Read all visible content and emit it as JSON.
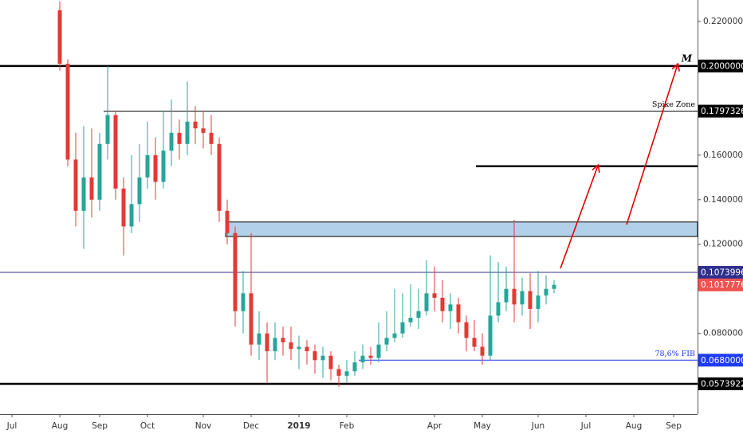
{
  "chart_data": {
    "type": "candlestick",
    "categories": [
      null,
      "Jul",
      null,
      null,
      null,
      null,
      null,
      "Aug",
      null,
      null,
      null,
      null,
      "Sep",
      null,
      null,
      null,
      null,
      null,
      "Oct",
      null,
      null,
      null,
      null,
      null,
      null,
      "Nov",
      null,
      null,
      null,
      null,
      null,
      "Dec",
      null,
      null,
      null,
      null,
      null,
      "2019",
      null,
      null,
      null,
      null,
      null,
      "Feb",
      null,
      null,
      null,
      null,
      null,
      null,
      null,
      null,
      null,
      null,
      "Apr",
      null,
      null,
      null,
      null,
      null,
      "May",
      null,
      null,
      null,
      null,
      null,
      null,
      "Jun",
      null,
      null,
      null,
      null,
      null,
      "Jul",
      null,
      null,
      null,
      null,
      null,
      "Aug",
      null,
      null,
      null,
      null,
      "Sep",
      null,
      null,
      null
    ],
    "open": [
      null,
      null,
      null,
      null,
      null,
      null,
      null,
      0.225,
      0.201,
      0.158,
      0.135,
      0.15,
      0.14,
      0.165,
      0.178,
      0.145,
      0.128,
      0.138,
      0.15,
      0.16,
      0.148,
      0.162,
      0.17,
      0.165,
      0.175,
      0.172,
      0.17,
      0.165,
      0.135,
      0.125,
      0.09,
      0.098,
      0.075,
      0.08,
      0.072,
      0.078,
      0.076,
      0.073,
      0.074,
      0.072,
      0.068,
      0.07,
      0.064,
      0.061,
      0.063,
      0.067,
      0.07,
      0.069,
      0.075,
      0.078,
      0.08,
      0.085,
      0.087,
      0.09,
      0.098,
      0.096,
      0.09,
      0.093,
      0.085,
      0.078,
      0.074,
      0.07,
      0.088,
      0.094,
      0.1,
      0.093,
      0.099,
      0.091,
      0.097,
      0.1,
      null,
      null,
      null,
      null,
      null,
      null,
      null,
      null,
      null,
      null,
      null,
      null,
      null,
      null,
      null,
      null,
      null,
      null
    ],
    "high": [
      null,
      null,
      null,
      null,
      null,
      null,
      null,
      0.229,
      0.203,
      0.17,
      0.173,
      0.172,
      0.17,
      0.2,
      0.18,
      0.15,
      0.16,
      0.165,
      0.175,
      0.168,
      0.18,
      0.185,
      0.176,
      0.193,
      0.182,
      0.18,
      0.178,
      0.168,
      0.14,
      0.128,
      0.108,
      0.125,
      0.09,
      0.085,
      0.085,
      0.083,
      0.083,
      0.079,
      0.077,
      0.075,
      0.074,
      0.072,
      0.066,
      0.068,
      0.072,
      0.075,
      0.074,
      0.085,
      0.09,
      0.1,
      0.098,
      0.102,
      0.1,
      0.113,
      0.11,
      0.104,
      0.098,
      0.096,
      0.088,
      0.086,
      0.08,
      0.115,
      0.112,
      0.11,
      0.131,
      0.105,
      0.107,
      0.108,
      0.106,
      0.104,
      null,
      null,
      null,
      null,
      null,
      null,
      null,
      null,
      null,
      null,
      null,
      null,
      null,
      null,
      null,
      null,
      null,
      null
    ],
    "low": [
      null,
      null,
      null,
      null,
      null,
      null,
      null,
      0.198,
      0.155,
      0.128,
      0.118,
      0.132,
      0.135,
      0.158,
      0.14,
      0.115,
      0.125,
      0.13,
      0.145,
      0.14,
      0.145,
      0.155,
      0.158,
      0.16,
      0.165,
      0.163,
      0.16,
      0.13,
      0.12,
      0.083,
      0.08,
      0.07,
      0.068,
      0.058,
      0.068,
      0.07,
      0.068,
      0.064,
      0.066,
      0.062,
      0.06,
      0.059,
      0.056,
      0.058,
      0.061,
      0.064,
      0.066,
      0.067,
      0.072,
      0.076,
      0.078,
      0.083,
      0.082,
      0.088,
      0.09,
      0.085,
      0.082,
      0.08,
      0.072,
      0.072,
      0.066,
      0.068,
      0.085,
      0.09,
      0.085,
      0.088,
      0.082,
      0.085,
      0.093,
      0.098,
      null,
      null,
      null,
      null,
      null,
      null,
      null,
      null,
      null,
      null,
      null,
      null,
      null,
      null,
      null,
      null,
      null,
      null
    ],
    "close": [
      null,
      null,
      null,
      null,
      null,
      null,
      null,
      0.201,
      0.158,
      0.135,
      0.15,
      0.14,
      0.165,
      0.178,
      0.145,
      0.128,
      0.138,
      0.15,
      0.16,
      0.148,
      0.162,
      0.17,
      0.165,
      0.175,
      0.172,
      0.17,
      0.165,
      0.135,
      0.125,
      0.09,
      0.098,
      0.075,
      0.08,
      0.072,
      0.078,
      0.076,
      0.073,
      0.074,
      0.072,
      0.068,
      0.07,
      0.064,
      0.061,
      0.063,
      0.067,
      0.07,
      0.069,
      0.075,
      0.078,
      0.08,
      0.085,
      0.087,
      0.09,
      0.098,
      0.096,
      0.09,
      0.093,
      0.085,
      0.078,
      0.074,
      0.07,
      0.088,
      0.094,
      0.1,
      0.093,
      0.099,
      0.091,
      0.097,
      0.1,
      0.10177765,
      null,
      null,
      null,
      null,
      null,
      null,
      null,
      null,
      null,
      null,
      null,
      null,
      null,
      null,
      null,
      null,
      null,
      null
    ],
    "up_color": "#26a69a",
    "down_color": "#e53935",
    "ylim": [
      0.0438,
      0.2296
    ],
    "yticks": [
      {
        "value": 0.22,
        "label": "0.22000000"
      },
      {
        "value": 0.16,
        "label": "0.16000000"
      },
      {
        "value": 0.14,
        "label": "0.14000000"
      },
      {
        "value": 0.12,
        "label": "0.12000000"
      },
      {
        "value": 0.08,
        "label": "0.08000000"
      }
    ],
    "levels": [
      {
        "value": 0.2,
        "label": "0.20000000",
        "color": "#000000",
        "note": "M"
      },
      {
        "value": 0.17973269,
        "label": "0.17973269",
        "color": "#000000",
        "note": "Spike Zone"
      },
      {
        "value": 0.155,
        "color": "#000000"
      },
      {
        "value": 0.1073996,
        "label": "0.10739960",
        "color": "#2f2f8f"
      },
      {
        "value": 0.068,
        "label": "0.06800000",
        "color": "#1f3cf5",
        "note": "78,6% FIB"
      },
      {
        "value": 0.05739224,
        "label": "0.05739224",
        "color": "#000000"
      }
    ],
    "zone": {
      "from": 0.1235,
      "to": 0.13,
      "color": "#b3d0ea"
    },
    "last_price": {
      "value": 0.10177765,
      "label": "0.10177765",
      "color": "#ef5350"
    }
  }
}
